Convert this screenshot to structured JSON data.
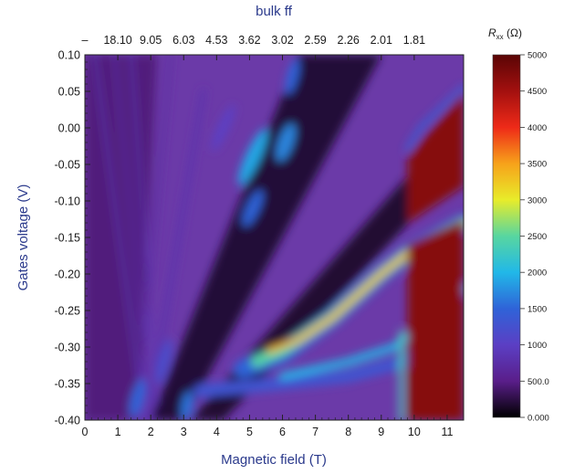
{
  "chart_data": {
    "type": "heatmap",
    "title": "",
    "xlabel": "Magnetic field (T)",
    "ylabel": "Gates voltage (V)",
    "top_axis_label": "bulk ff",
    "xlim": [
      0,
      11.5
    ],
    "ylim": [
      -0.4,
      0.1
    ],
    "x_ticks": [
      0,
      1,
      2,
      3,
      4,
      5,
      6,
      7,
      8,
      9,
      10,
      11
    ],
    "x_tick_labels": [
      "0",
      "1",
      "2",
      "3",
      "4",
      "5",
      "6",
      "7",
      "8",
      "9",
      "10",
      "11"
    ],
    "y_ticks": [
      0.1,
      0.05,
      0.0,
      -0.05,
      -0.1,
      -0.15,
      -0.2,
      -0.25,
      -0.3,
      -0.35,
      -0.4
    ],
    "y_tick_labels": [
      "0.10",
      "0.05",
      "0.00",
      "-0.05",
      "-0.10",
      "-0.15",
      "-0.20",
      "-0.25",
      "-0.30",
      "-0.35",
      "-0.40"
    ],
    "top_ticks": [
      {
        "x": 0,
        "label": "–"
      },
      {
        "x": 1.0,
        "label": "18.10"
      },
      {
        "x": 2.0,
        "label": "9.05"
      },
      {
        "x": 3.0,
        "label": "6.03"
      },
      {
        "x": 4.0,
        "label": "4.53"
      },
      {
        "x": 5.0,
        "label": "3.62"
      },
      {
        "x": 6.0,
        "label": "3.02"
      },
      {
        "x": 7.0,
        "label": "2.59"
      },
      {
        "x": 8.0,
        "label": "2.26"
      },
      {
        "x": 9.0,
        "label": "2.01"
      },
      {
        "x": 10.0,
        "label": "1.81"
      }
    ],
    "colorbar": {
      "label_main": "R",
      "label_sub": "xx",
      "label_unit": " (Ω)",
      "range": [
        0,
        5000
      ],
      "ticks": [
        {
          "value": 5000,
          "label": "5000"
        },
        {
          "value": 4500,
          "label": "4500"
        },
        {
          "value": 4000,
          "label": "4000"
        },
        {
          "value": 3500,
          "label": "3500"
        },
        {
          "value": 3000,
          "label": "3000"
        },
        {
          "value": 2500,
          "label": "2500"
        },
        {
          "value": 2000,
          "label": "2000"
        },
        {
          "value": 1500,
          "label": "1500"
        },
        {
          "value": 1000,
          "label": "1000"
        },
        {
          "value": 500,
          "label": "500.0"
        },
        {
          "value": 0,
          "label": "0.000"
        }
      ],
      "colors": [
        "#000000",
        "#5a1e8a",
        "#5b3fc4",
        "#2f63d8",
        "#21b8e8",
        "#58d6a0",
        "#e8ec2a",
        "#f7a21a",
        "#ee2a18",
        "#a3100f",
        "#5a0505"
      ]
    },
    "background_value": 300,
    "features": [
      {
        "name": "high-resistance region",
        "approx_B_range": [
          9.8,
          11.5
        ],
        "approx_V_range": [
          -0.4,
          0.05
        ],
        "approx_value": 5000
      },
      {
        "name": "main bright ridge",
        "approx_B_range": [
          4.8,
          11.5
        ],
        "approx_V_range": [
          -0.35,
          -0.13
        ],
        "approx_value": 3300
      },
      {
        "name": "lower bright ridge",
        "approx_B_range": [
          6.5,
          11.5
        ],
        "approx_V_range": [
          -0.36,
          -0.22
        ],
        "approx_value": 2000
      },
      {
        "name": "upper islands",
        "approx_B_range": [
          4.7,
          6.6
        ],
        "approx_V_range": [
          -0.13,
          0.1
        ],
        "approx_value": 1900
      },
      {
        "name": "low-field islands",
        "approx_B_range": [
          1.3,
          3.3
        ],
        "approx_V_range": [
          -0.4,
          -0.25
        ],
        "approx_value": 1500
      }
    ]
  }
}
